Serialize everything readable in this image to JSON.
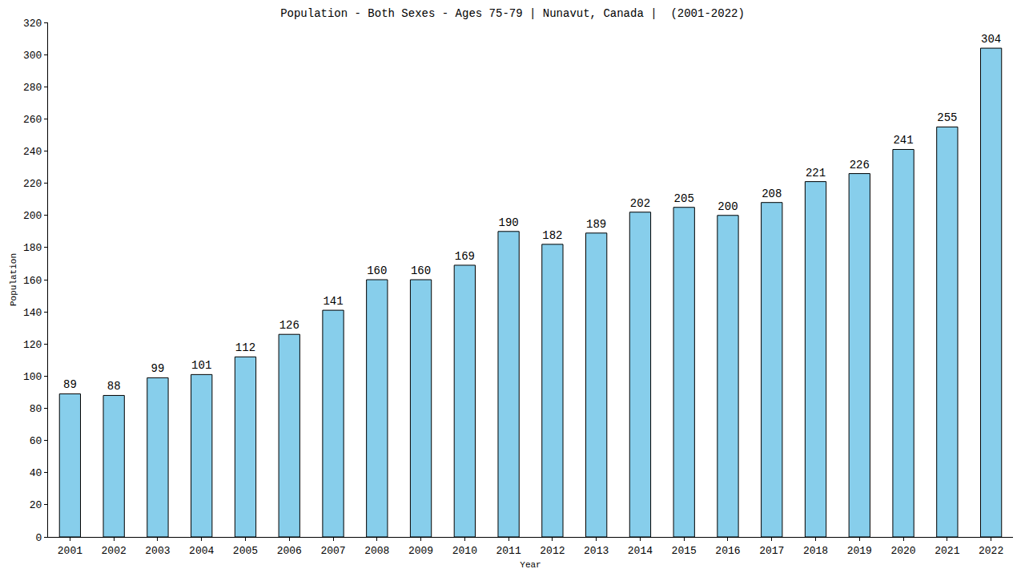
{
  "chart_data": {
    "type": "bar",
    "title": "Population - Both Sexes - Ages 75-79 | Nunavut, Canada |  (2001-2022)",
    "x_label": "Year",
    "y_label": "Population",
    "categories": [
      "2001",
      "2002",
      "2003",
      "2004",
      "2005",
      "2006",
      "2007",
      "2008",
      "2009",
      "2010",
      "2011",
      "2012",
      "2013",
      "2014",
      "2015",
      "2016",
      "2017",
      "2018",
      "2019",
      "2020",
      "2021",
      "2022"
    ],
    "values": [
      89,
      88,
      99,
      101,
      112,
      126,
      141,
      160,
      160,
      169,
      190,
      182,
      189,
      202,
      205,
      200,
      208,
      221,
      226,
      241,
      255,
      304
    ],
    "color": "#87ceeb",
    "ylim": [
      0,
      320
    ],
    "yticks": [
      0,
      20,
      40,
      60,
      80,
      100,
      120,
      140,
      160,
      180,
      200,
      220,
      240,
      260,
      280,
      300,
      320
    ],
    "grid": false,
    "data_labels": true
  }
}
